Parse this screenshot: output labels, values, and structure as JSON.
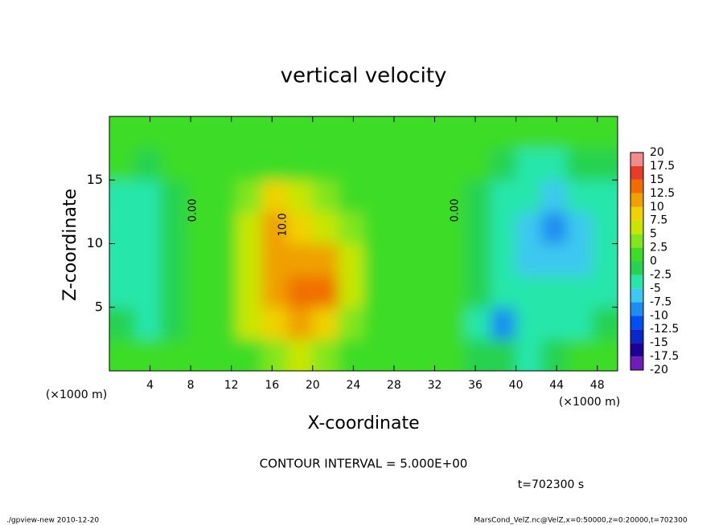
{
  "chart_data": {
    "type": "heatmap",
    "title": "vertical velocity",
    "xlabel": "X-coordinate",
    "ylabel": "Z-coordinate",
    "x_unit_label": "(×1000 m)",
    "xlim": [
      0,
      50
    ],
    "ylim": [
      0,
      20
    ],
    "xticks": [
      4,
      8,
      12,
      16,
      20,
      24,
      28,
      32,
      36,
      40,
      44,
      48
    ],
    "yticks": [
      5,
      10,
      15
    ],
    "x": [
      1.25,
      3.75,
      6.25,
      8.75,
      11.25,
      13.75,
      16.25,
      18.75,
      21.25,
      23.75,
      26.25,
      28.75,
      31.25,
      33.75,
      36.25,
      38.75,
      41.25,
      43.75,
      46.25,
      48.75
    ],
    "y": [
      1.25,
      3.75,
      6.25,
      8.75,
      11.25,
      13.75,
      16.25,
      18.75
    ],
    "values": [
      [
        1,
        0,
        1,
        2,
        1,
        2,
        4,
        5,
        4,
        2,
        1,
        1,
        1,
        1,
        -1,
        -2,
        -3,
        -2,
        0,
        1
      ],
      [
        -2,
        -3,
        -1,
        1,
        1,
        5,
        9,
        12,
        9,
        4,
        1,
        1,
        1,
        1,
        -3,
        -8,
        -5,
        -4,
        -3,
        -2
      ],
      [
        -3,
        -3,
        -2,
        1,
        1,
        7,
        12,
        14,
        13,
        6,
        2,
        1,
        1,
        1,
        -2,
        -4,
        -4,
        -4,
        -4,
        -3
      ],
      [
        -3,
        -4,
        -2,
        1,
        1,
        6,
        11,
        11,
        12,
        6,
        2,
        1,
        1,
        1,
        -2,
        -5,
        -6,
        -7,
        -6,
        -4
      ],
      [
        -4,
        -3,
        -1,
        1,
        1,
        5,
        12,
        9,
        7,
        4,
        2,
        1,
        1,
        1,
        -1,
        -5,
        -7,
        -8,
        -6,
        -4
      ],
      [
        -3,
        -3,
        -1,
        1,
        1,
        4,
        8,
        6,
        4,
        2,
        1,
        1,
        1,
        1,
        -1,
        -4,
        -5,
        -6,
        -5,
        -4
      ],
      [
        0,
        -1,
        0,
        1,
        1,
        1,
        2,
        2,
        1,
        1,
        1,
        1,
        1,
        1,
        0,
        -2,
        -3,
        -3,
        -2,
        -1
      ],
      [
        1,
        1,
        1,
        1,
        1,
        1,
        1,
        1,
        1,
        1,
        1,
        1,
        1,
        1,
        1,
        1,
        1,
        1,
        1,
        0
      ]
    ],
    "colorbar": {
      "levels": [
        -20,
        -17.5,
        -15,
        -12.5,
        -10,
        -7.5,
        -5,
        -2.5,
        0,
        2.5,
        5,
        7.5,
        10,
        12.5,
        15,
        17.5,
        20
      ],
      "colors": [
        "#6e1eb4",
        "#1e0096",
        "#0a28c8",
        "#0050f0",
        "#1e8cf0",
        "#3cc8f0",
        "#28e6aa",
        "#28d250",
        "#3cdc28",
        "#82e61e",
        "#c8e600",
        "#f0d200",
        "#f0a000",
        "#f06e00",
        "#e63c28",
        "#f08c8c"
      ]
    },
    "contour_labels": [
      "0.00",
      "0.00",
      "10.0"
    ],
    "contour_interval": "CONTOUR INTERVAL = 5.000E+00",
    "time_label": "t=702300 s",
    "footer_left": "./gpview-new  2010-12-20",
    "footer_right": "MarsCond_VelZ.nc@VelZ,x=0:50000,z=0:20000,t=702300"
  }
}
